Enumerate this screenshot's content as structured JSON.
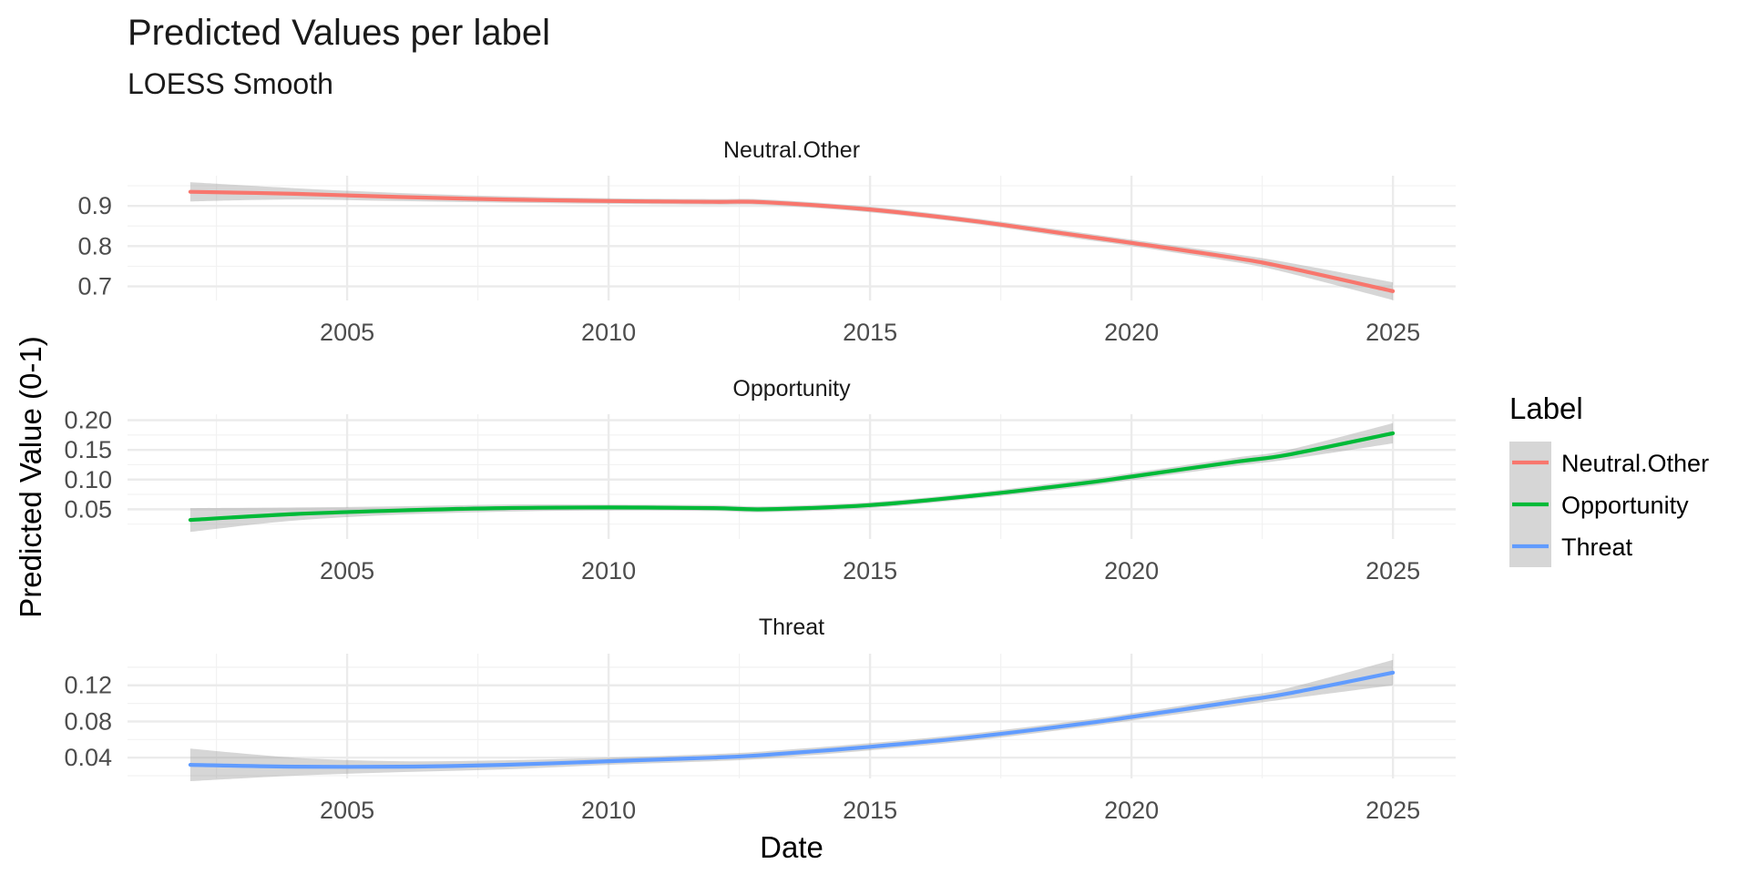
{
  "title": "Predicted Values per label",
  "subtitle": "LOESS Smooth",
  "chart_data": {
    "type": "line",
    "title": "Predicted Values per label",
    "subtitle": "LOESS Smooth",
    "xlabel": "Date",
    "ylabel": "Predicted Value (0-1)",
    "grid": true,
    "legend": {
      "title": "Label",
      "placement": "right",
      "entries": [
        "Neutral.Other",
        "Opportunity",
        "Threat"
      ]
    },
    "x_ticks": [
      2005,
      2010,
      2015,
      2020,
      2025
    ],
    "xlim": [
      2000.8,
      2026.2
    ],
    "panels": [
      {
        "name": "Neutral.Other",
        "color": "#F8766D",
        "ylim": [
          0.665,
          0.975
        ],
        "y_ticks": [
          0.7,
          0.8,
          0.9
        ],
        "y_tick_labels": [
          "0.7",
          "0.8",
          "0.9"
        ],
        "x": [
          2002,
          2004,
          2006,
          2008,
          2010,
          2012,
          2013,
          2015,
          2017,
          2019,
          2020,
          2022,
          2023,
          2025
        ],
        "y": [
          0.935,
          0.93,
          0.922,
          0.916,
          0.912,
          0.91,
          0.909,
          0.891,
          0.862,
          0.826,
          0.808,
          0.77,
          0.746,
          0.688
        ],
        "ci_halfwidth": [
          0.024,
          0.014,
          0.01,
          0.008,
          0.007,
          0.007,
          0.007,
          0.007,
          0.007,
          0.008,
          0.008,
          0.01,
          0.013,
          0.022
        ]
      },
      {
        "name": "Opportunity",
        "color": "#00BA38",
        "ylim": [
          0.0,
          0.21
        ],
        "y_ticks": [
          0.05,
          0.1,
          0.15,
          0.2
        ],
        "y_tick_labels": [
          "0.05",
          "0.10",
          "0.15",
          "0.20"
        ],
        "x": [
          2002,
          2004,
          2006,
          2008,
          2010,
          2012,
          2013,
          2015,
          2017,
          2019,
          2020,
          2022,
          2023,
          2025
        ],
        "y": [
          0.032,
          0.042,
          0.048,
          0.052,
          0.053,
          0.052,
          0.05,
          0.057,
          0.073,
          0.093,
          0.105,
          0.13,
          0.142,
          0.178
        ],
        "ci_halfwidth": [
          0.02,
          0.011,
          0.007,
          0.006,
          0.005,
          0.005,
          0.005,
          0.005,
          0.005,
          0.006,
          0.006,
          0.007,
          0.008,
          0.017
        ]
      },
      {
        "name": "Threat",
        "color": "#619CFF",
        "ylim": [
          0.017,
          0.155
        ],
        "y_ticks": [
          0.04,
          0.08,
          0.12
        ],
        "y_tick_labels": [
          "0.04",
          "0.08",
          "0.12"
        ],
        "x": [
          2002,
          2004,
          2006,
          2008,
          2010,
          2012,
          2013,
          2015,
          2017,
          2019,
          2020,
          2022,
          2023,
          2025
        ],
        "y": [
          0.032,
          0.03,
          0.03,
          0.032,
          0.036,
          0.04,
          0.043,
          0.052,
          0.063,
          0.077,
          0.085,
          0.102,
          0.111,
          0.134
        ],
        "ci_halfwidth": [
          0.018,
          0.01,
          0.006,
          0.005,
          0.004,
          0.004,
          0.004,
          0.004,
          0.004,
          0.004,
          0.004,
          0.005,
          0.006,
          0.014
        ]
      }
    ]
  }
}
